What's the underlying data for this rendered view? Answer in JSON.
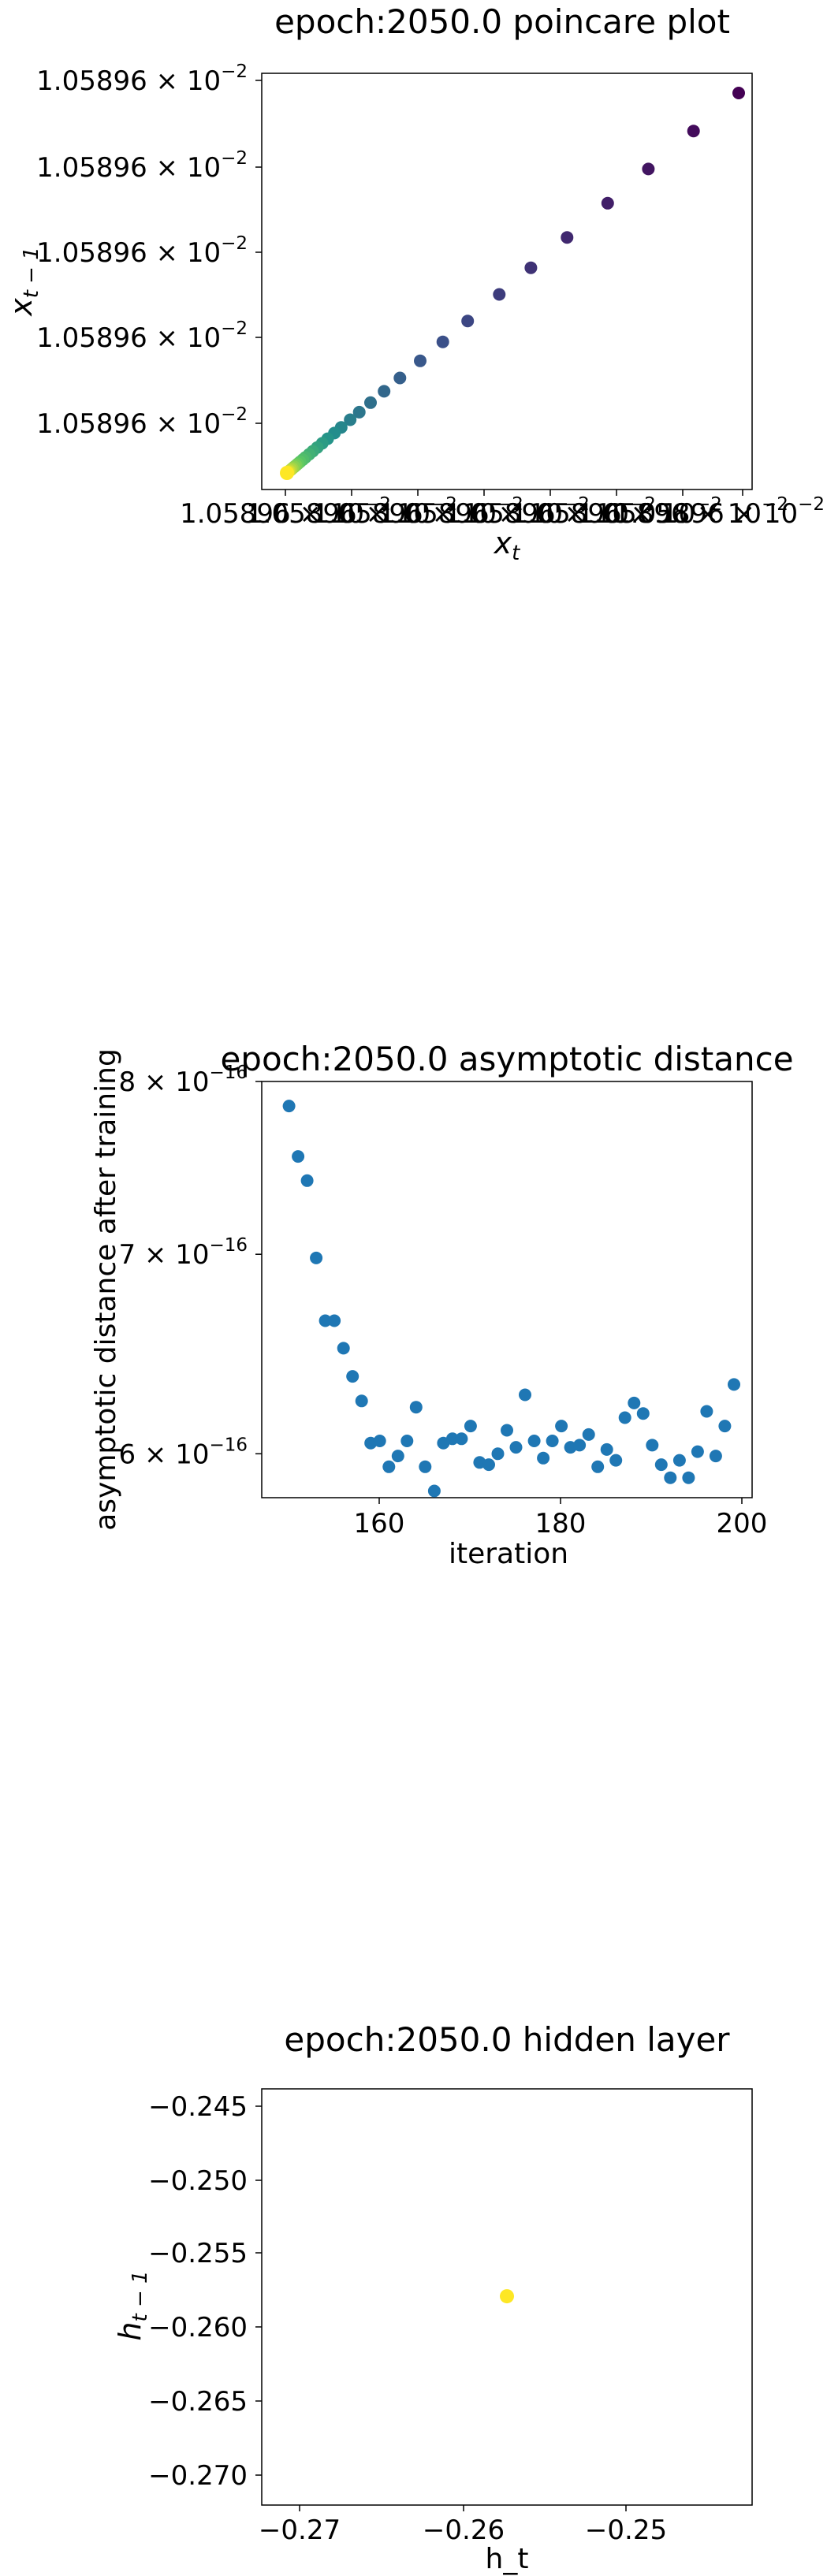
{
  "charts": {
    "poincare": {
      "title": "epoch:2050.0 poincare plot",
      "xlabel_base": "x",
      "xlabel_sub": "t",
      "ylabel_base": "x",
      "ylabel_sub": "t − 1",
      "yticks": [
        {
          "mant": "1.05896 × 10",
          "exp": "−2"
        },
        {
          "mant": "1.05896 × 10",
          "exp": "−2"
        },
        {
          "mant": "1.05896 × 10",
          "exp": "−2"
        },
        {
          "mant": "1.05896 × 10",
          "exp": "−2"
        },
        {
          "mant": "1.05896 × 10",
          "exp": "−2"
        }
      ],
      "xticks_overlapped": [
        {
          "mant": "1.05896 × 10",
          "exp": "−2"
        },
        {
          "mant": "1.05896 × 10",
          "exp": "−2"
        },
        {
          "mant": "1.05896 × 10",
          "exp": "−2"
        },
        {
          "mant": "1.05896 × 10",
          "exp": "−2"
        },
        {
          "mant": "1.05896 × 10",
          "exp": "−2"
        },
        {
          "mant": "1.05896 × 10",
          "exp": "−2"
        },
        {
          "mant": "1.05896 × 10",
          "exp": "−2"
        },
        {
          "mant": "1.05896 × 10",
          "exp": "−2"
        }
      ],
      "colormap": "viridis"
    },
    "asymptotic": {
      "title": "epoch:2050.0 asymptotic distance",
      "xlabel": "iteration",
      "ylabel": "asymptotic distance after training",
      "point_color": "#1f77b4",
      "yticks": [
        {
          "mant": "6 × 10",
          "exp": "−16",
          "value": 6e-16
        },
        {
          "mant": "7 × 10",
          "exp": "−16",
          "value": 7e-16
        },
        {
          "mant": "8 × 10",
          "exp": "−16",
          "value": 8e-16
        }
      ],
      "xticks": [
        "160",
        "180",
        "200"
      ]
    },
    "hidden": {
      "title": "epoch:2050.0 hidden layer",
      "xlabel": "h_t",
      "ylabel_base": "h",
      "ylabel_sub": "t − 1",
      "point_color": "#fde725",
      "xticks": [
        "−0.27",
        "−0.26",
        "−0.25"
      ],
      "yticks": [
        "−0.245",
        "−0.250",
        "−0.255",
        "−0.260",
        "−0.265",
        "−0.270"
      ]
    }
  },
  "chart_data": [
    {
      "type": "scatter",
      "name": "poincare",
      "title": "epoch:2050.0 poincare plot",
      "xlabel": "x_t",
      "ylabel": "x_{t-1}",
      "x": [
        1.0,
        0.9,
        0.8,
        0.71,
        0.62,
        0.54,
        0.47,
        0.4,
        0.345,
        0.295,
        0.25,
        0.215,
        0.185,
        0.16,
        0.14,
        0.12,
        0.105,
        0.09,
        0.078,
        0.067,
        0.057,
        0.049,
        0.041,
        0.035,
        0.029,
        0.024,
        0.02,
        0.016,
        0.012,
        0.009,
        0.006,
        0.004,
        0.002,
        0.0
      ],
      "y": [
        1.0,
        0.9,
        0.8,
        0.71,
        0.62,
        0.54,
        0.47,
        0.4,
        0.345,
        0.295,
        0.25,
        0.215,
        0.185,
        0.16,
        0.14,
        0.12,
        0.105,
        0.09,
        0.078,
        0.067,
        0.057,
        0.049,
        0.041,
        0.035,
        0.029,
        0.024,
        0.02,
        0.016,
        0.012,
        0.009,
        0.006,
        0.004,
        0.002,
        0.0
      ],
      "color_by": "iteration order (viridis)"
    },
    {
      "type": "scatter",
      "name": "asymptotic",
      "title": "epoch:2050.0 asymptotic distance",
      "xlabel": "iteration",
      "ylabel": "asymptotic distance after training",
      "yscale": "log",
      "xlim": [
        147,
        201
      ],
      "ylim": [
        5.8e-16,
        8e-16
      ],
      "x": [
        150,
        151,
        152,
        153,
        154,
        155,
        156,
        157,
        158,
        159,
        160,
        161,
        162,
        163,
        164,
        165,
        166,
        167,
        168,
        169,
        170,
        171,
        172,
        173,
        174,
        175,
        176,
        177,
        178,
        179,
        180,
        181,
        182,
        183,
        184,
        185,
        186,
        187,
        188,
        189,
        190,
        191,
        192,
        193,
        194,
        195,
        196,
        197,
        198,
        199
      ],
      "y": [
        7.85e-16,
        7.55e-16,
        7.41e-16,
        6.98e-16,
        6.65e-16,
        6.65e-16,
        6.51e-16,
        6.37e-16,
        6.25e-16,
        6.05e-16,
        6.06e-16,
        5.94e-16,
        5.99e-16,
        6.06e-16,
        6.22e-16,
        5.94e-16,
        5.83e-16,
        6.05e-16,
        6.07e-16,
        6.07e-16,
        6.13e-16,
        5.96e-16,
        5.95e-16,
        6e-16,
        6.11e-16,
        6.03e-16,
        6.28e-16,
        6.06e-16,
        5.98e-16,
        6.06e-16,
        6.13e-16,
        6.03e-16,
        6.04e-16,
        6.09e-16,
        5.94e-16,
        6.02e-16,
        5.97e-16,
        6.17e-16,
        6.24e-16,
        6.19e-16,
        6.04e-16,
        5.95e-16,
        5.89e-16,
        5.97e-16,
        5.89e-16,
        6.01e-16,
        6.2e-16,
        5.99e-16,
        6.13e-16,
        6.33e-16
      ]
    },
    {
      "type": "scatter",
      "name": "hidden",
      "title": "epoch:2050.0 hidden layer",
      "xlabel": "h_t",
      "ylabel": "h_{t-1}",
      "xlim": [
        -0.2753,
        -0.2403
      ],
      "ylim": [
        -0.2722,
        -0.2435
      ],
      "x": [
        -0.2578
      ],
      "y": [
        -0.2578
      ]
    }
  ]
}
